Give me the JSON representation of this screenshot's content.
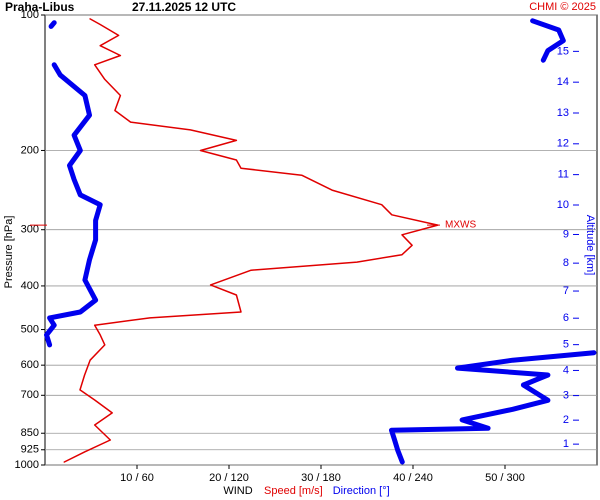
{
  "chart_data": {
    "type": "line",
    "title": "Praha-Libus",
    "subtitle": "27.11.2025 12 UTC",
    "credit": "CHMI © 2025",
    "ylabel": "Pressure [hPa]",
    "y2label": "Altitude [km]",
    "xlabel": "WIND",
    "y_scale": "log",
    "y_inverted": true,
    "ylim": [
      100,
      1000
    ],
    "yticks": [
      100,
      200,
      300,
      400,
      500,
      600,
      700,
      850,
      925,
      1000
    ],
    "y2_scale": "standard-atmosphere",
    "y2ticks": [
      1,
      2,
      3,
      4,
      5,
      6,
      7,
      8,
      9,
      10,
      11,
      12,
      13,
      14,
      15
    ],
    "xlim": [
      0,
      60
    ],
    "x2lim": [
      0,
      360
    ],
    "xticks": [
      {
        "value": 10,
        "label": "10 / 60"
      },
      {
        "value": 20,
        "label": "20 / 120"
      },
      {
        "value": 30,
        "label": "30 / 180"
      },
      {
        "value": 40,
        "label": "40 / 240"
      },
      {
        "value": 50,
        "label": "50 / 300"
      }
    ],
    "grid": true,
    "annotations": [
      {
        "text": "MXWS",
        "pressure": 293,
        "color": "#e00000"
      }
    ],
    "series": [
      {
        "name": "Speed [m/s]",
        "color": "#e00000",
        "pressure": [
          985,
          935,
          880,
          815,
          766,
          717,
          681,
          631,
          585,
          541,
          514,
          489,
          471,
          457,
          419,
          398,
          369,
          354,
          341,
          325,
          308,
          293,
          278,
          264,
          245,
          227,
          219,
          210,
          200,
          190,
          180,
          173,
          163,
          151,
          139,
          129,
          123,
          117,
          111,
          105,
          102
        ],
        "values": [
          2.1,
          4.3,
          7.1,
          5.4,
          7.3,
          5.4,
          3.8,
          4.3,
          4.9,
          6.5,
          6.0,
          5.4,
          11.4,
          21.3,
          20.8,
          18.0,
          22.4,
          33.9,
          38.8,
          39.9,
          38.8,
          42.7,
          37.7,
          36.6,
          31.2,
          27.9,
          21.3,
          20.8,
          16.9,
          20.8,
          15.8,
          9.3,
          7.6,
          8.2,
          6.5,
          5.4,
          8.2,
          6.0,
          8.0,
          6.0,
          4.9
        ]
      },
      {
        "name": "Direction [°]",
        "color": "#0000ee",
        "axis": "x2",
        "pressure": [
          985,
          927,
          880,
          837,
          829,
          794,
          752,
          718,
          664,
          631,
          609,
          585,
          563,
          null,
          541,
          514,
          489,
          471,
          457,
          430,
          388,
          350,
          316,
          286,
          264,
          251,
          232,
          216,
          200,
          185,
          167,
          151,
          136,
          129,
          null,
          126,
          120,
          114,
          108,
          103,
          null,
          104,
          106
        ],
        "values": [
          233,
          230,
          228,
          226,
          289,
          272,
          305,
          328,
          312,
          328,
          269,
          305,
          358,
          null,
          3,
          1,
          6,
          3,
          23,
          33,
          26,
          29,
          33,
          33,
          36,
          23,
          19,
          16,
          23,
          19,
          29,
          26,
          10,
          6,
          null,
          325,
          328,
          338,
          335,
          318,
          null,
          6,
          4
        ]
      }
    ]
  }
}
